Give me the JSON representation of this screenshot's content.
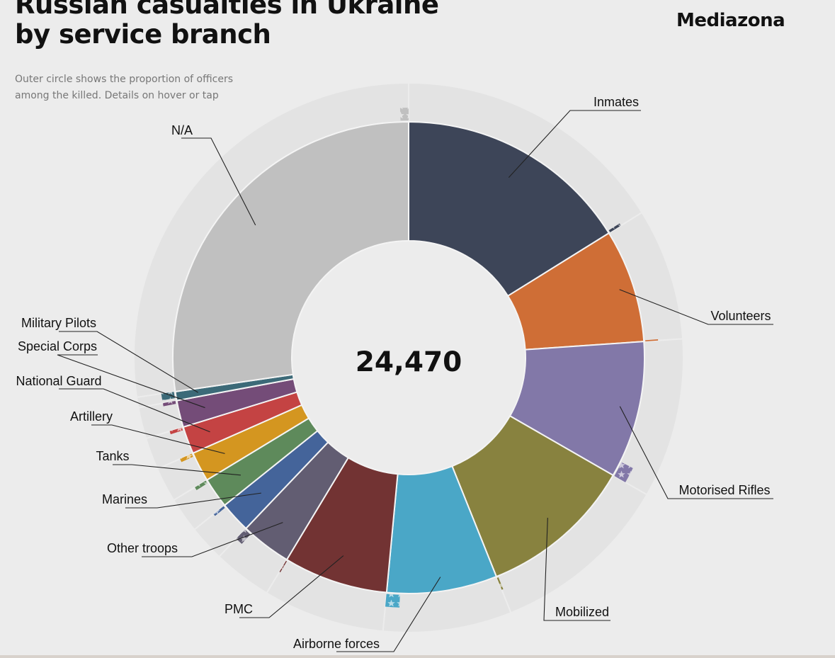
{
  "page": {
    "title_lines": [
      "Russian casualties in Ukraine",
      "by service branch"
    ],
    "brand": "Mediazona",
    "subtitle_lines": [
      "Outer circle shows the proportion of officers",
      "among the killed. Details on hover or tap"
    ]
  },
  "chart_data": {
    "type": "pie",
    "title": "Russian casualties in Ukraine by service branch",
    "total": "24,470",
    "series": [
      {
        "name": "Inmates",
        "value": 3950,
        "officer_share": 0.01,
        "color": "#3d4558"
      },
      {
        "name": "Volunteers",
        "value": 1900,
        "officer_share": 0.01,
        "color": "#cf6e36"
      },
      {
        "name": "Motorised Rifles",
        "value": 2300,
        "officer_share": 0.11,
        "color": "#8278a8"
      },
      {
        "name": "Mobilized",
        "value": 2600,
        "officer_share": 0.01,
        "color": "#88823f"
      },
      {
        "name": "Airborne forces",
        "value": 1850,
        "officer_share": 0.12,
        "color": "#4aa7c7"
      },
      {
        "name": "PMC",
        "value": 1750,
        "officer_share": 0.0,
        "color": "#723333"
      },
      {
        "name": "Other troops",
        "value": 850,
        "officer_share": 0.14,
        "color": "#625d72"
      },
      {
        "name": "Marines",
        "value": 520,
        "officer_share": 0.07,
        "color": "#44649a"
      },
      {
        "name": "Tanks",
        "value": 510,
        "officer_share": 0.1,
        "color": "#5e8a5b"
      },
      {
        "name": "Artillery",
        "value": 500,
        "officer_share": 0.11,
        "color": "#d49620"
      },
      {
        "name": "National Guard",
        "value": 460,
        "officer_share": 0.11,
        "color": "#c44343"
      },
      {
        "name": "Special Corps",
        "value": 450,
        "officer_share": 0.11,
        "color": "#744c78"
      },
      {
        "name": "Military Pilots",
        "value": 150,
        "officer_share": 0.7,
        "color": "#3c6a78"
      },
      {
        "name": "N/A",
        "value": 6680,
        "officer_share": 0.02,
        "color": "#c0c0c0"
      }
    ]
  }
}
